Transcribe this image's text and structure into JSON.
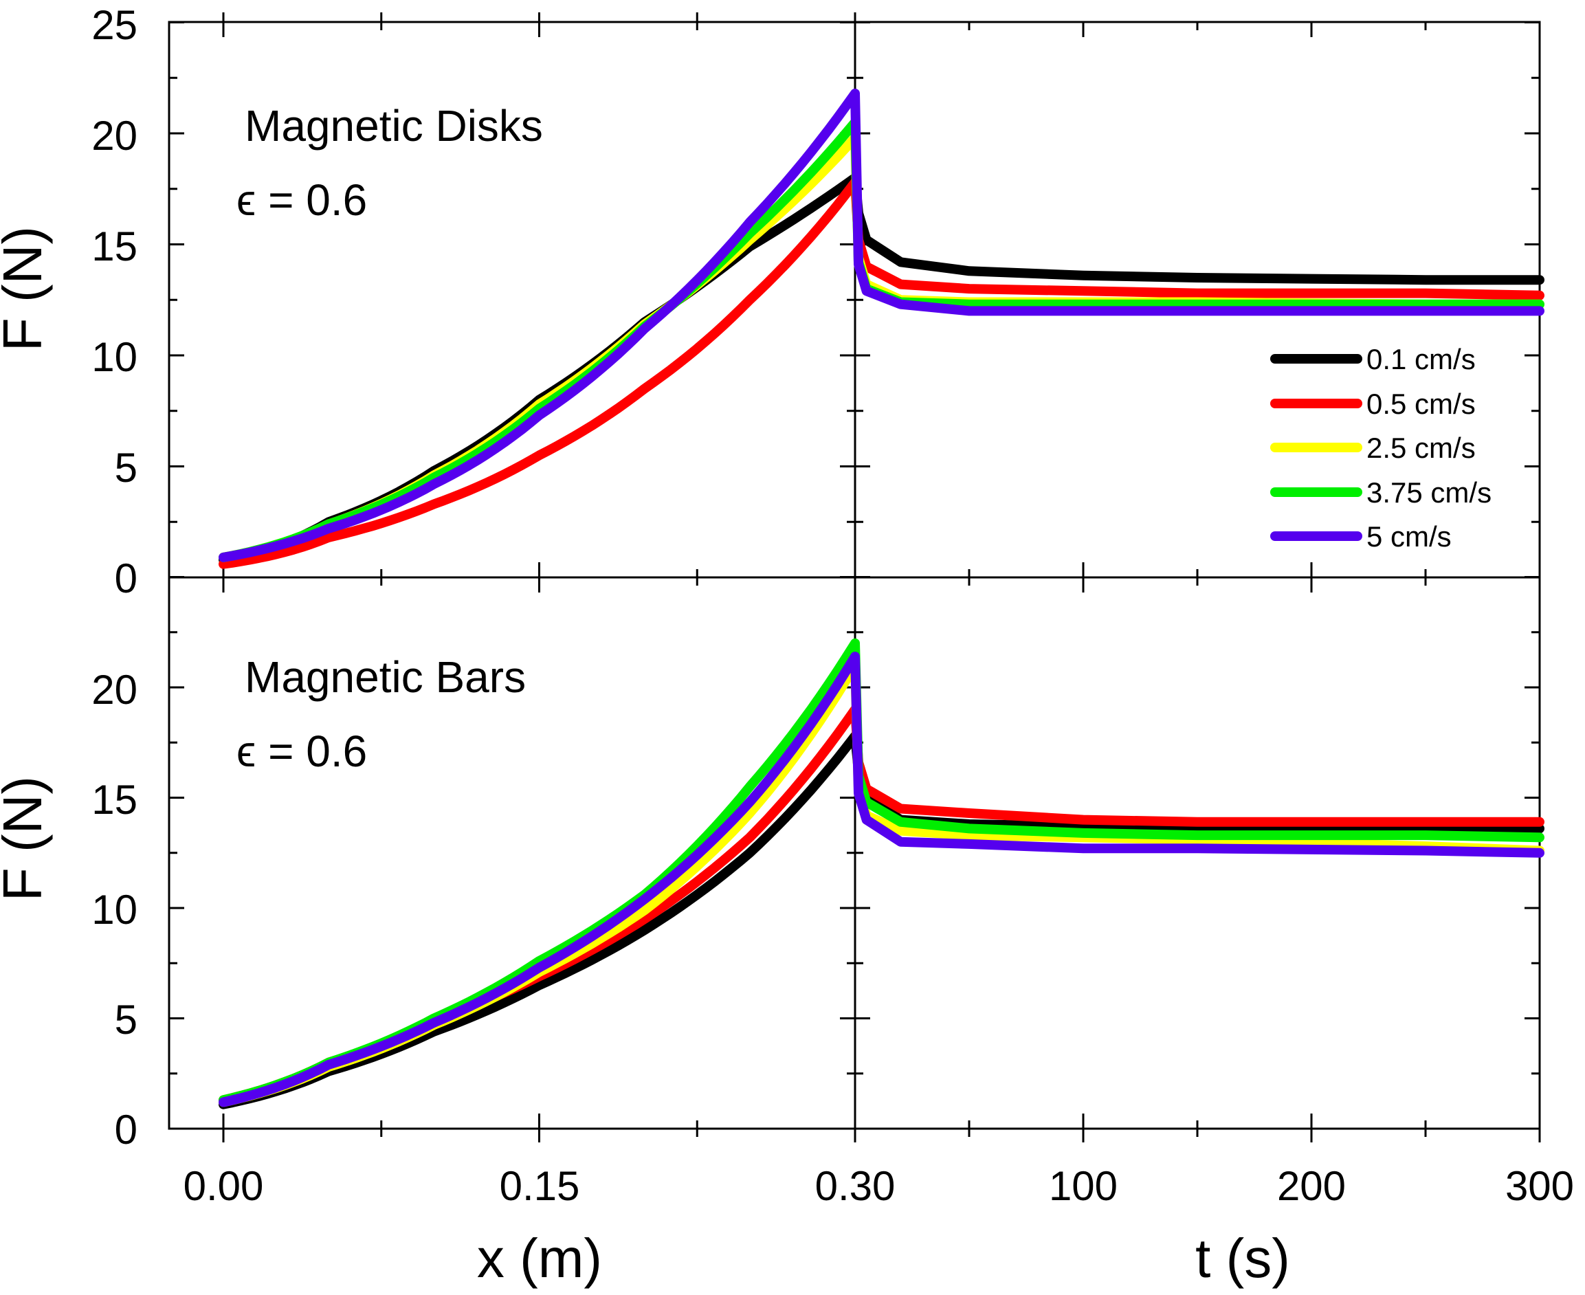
{
  "chart_data": {
    "type": "line",
    "y_axis": {
      "label": "F (N)",
      "range": [
        0,
        25
      ],
      "ticks": [
        "0",
        "5",
        "10",
        "15",
        "20",
        "25"
      ]
    },
    "x_axis_left": {
      "label": "x (m)",
      "range": [
        0,
        0.3
      ],
      "ticks": [
        "0.00",
        "0.15",
        "0.30"
      ]
    },
    "x_axis_right": {
      "label": "t (s)",
      "range": [
        0,
        300
      ],
      "ticks": [
        "100",
        "200",
        "300"
      ]
    },
    "legend": {
      "placement": "top-panel right",
      "entries": [
        {
          "label": "0.1 cm/s",
          "color": "#000000"
        },
        {
          "label": "0.5 cm/s",
          "color": "#ff0000"
        },
        {
          "label": "2.5 cm/s",
          "color": "#ffff00"
        },
        {
          "label": "3.75 cm/s",
          "color": "#00ee00"
        },
        {
          "label": "5 cm/s",
          "color": "#5500ee"
        }
      ]
    },
    "panels": [
      {
        "id": "top",
        "title": "Magnetic Disks",
        "param": "ϵ = 0.6",
        "series": [
          {
            "name": "0.1 cm/s",
            "color": "#000000",
            "peak": 18.0,
            "relax": [
              15.2,
              14.2,
              13.8,
              13.6,
              13.5,
              13.4,
              13.4
            ],
            "loading_x": [
              0.0,
              0.05,
              0.1,
              0.15,
              0.2,
              0.25,
              0.3
            ],
            "loading_F": [
              0.8,
              2.5,
              4.8,
              8.0,
              11.5,
              14.9,
              18.0
            ]
          },
          {
            "name": "0.5 cm/s",
            "color": "#ff0000",
            "peak": 17.8,
            "relax": [
              14.0,
              13.2,
              13.0,
              12.9,
              12.8,
              12.8,
              12.7
            ],
            "loading_x": [
              0.0,
              0.05,
              0.1,
              0.15,
              0.2,
              0.25,
              0.3
            ],
            "loading_F": [
              0.6,
              1.8,
              3.3,
              5.5,
              8.5,
              12.5,
              17.8
            ]
          },
          {
            "name": "2.5 cm/s",
            "color": "#ffff00",
            "peak": 19.8,
            "relax": [
              13.2,
              12.5,
              12.4,
              12.4,
              12.4,
              12.3,
              12.3
            ],
            "loading_x": [
              0.0,
              0.05,
              0.1,
              0.15,
              0.2,
              0.25,
              0.3
            ],
            "loading_F": [
              0.9,
              2.4,
              4.6,
              7.8,
              11.4,
              15.2,
              19.8
            ]
          },
          {
            "name": "3.75 cm/s",
            "color": "#00ee00",
            "peak": 20.5,
            "relax": [
              13.0,
              12.4,
              12.3,
              12.3,
              12.3,
              12.3,
              12.3
            ],
            "loading_x": [
              0.0,
              0.05,
              0.1,
              0.15,
              0.2,
              0.25,
              0.3
            ],
            "loading_F": [
              0.9,
              2.4,
              4.5,
              7.6,
              11.3,
              15.5,
              20.5
            ]
          },
          {
            "name": "5 cm/s",
            "color": "#5500ee",
            "peak": 21.8,
            "relax": [
              12.9,
              12.3,
              12.0,
              12.0,
              12.0,
              12.0,
              12.0
            ],
            "loading_x": [
              0.0,
              0.05,
              0.1,
              0.15,
              0.2,
              0.25,
              0.3
            ],
            "loading_F": [
              0.9,
              2.2,
              4.2,
              7.3,
              11.2,
              16.0,
              21.8
            ]
          }
        ]
      },
      {
        "id": "bottom",
        "title": "Magnetic Bars",
        "param": "ϵ = 0.6",
        "series": [
          {
            "name": "0.1 cm/s",
            "color": "#000000",
            "peak": 17.8,
            "relax": [
              15.0,
              14.0,
              13.8,
              13.7,
              13.6,
              13.6,
              13.6
            ],
            "loading_x": [
              0.0,
              0.05,
              0.1,
              0.15,
              0.2,
              0.25,
              0.3
            ],
            "loading_F": [
              1.1,
              2.6,
              4.4,
              6.5,
              9.0,
              12.5,
              17.8
            ]
          },
          {
            "name": "0.5 cm/s",
            "color": "#ff0000",
            "peak": 19.0,
            "relax": [
              15.4,
              14.5,
              14.3,
              14.0,
              13.9,
              13.9,
              13.9
            ],
            "loading_x": [
              0.0,
              0.05,
              0.1,
              0.15,
              0.2,
              0.25,
              0.3
            ],
            "loading_F": [
              1.3,
              3.0,
              4.9,
              6.9,
              9.5,
              13.2,
              19.0
            ]
          },
          {
            "name": "2.5 cm/s",
            "color": "#ffff00",
            "peak": 21.0,
            "relax": [
              14.2,
              13.5,
              13.3,
              13.2,
              13.1,
              12.8,
              12.6
            ],
            "loading_x": [
              0.0,
              0.05,
              0.1,
              0.15,
              0.2,
              0.25,
              0.3
            ],
            "loading_F": [
              1.2,
              2.8,
              4.7,
              7.1,
              9.9,
              14.3,
              21.0
            ]
          },
          {
            "name": "3.75 cm/s",
            "color": "#00ee00",
            "peak": 22.0,
            "relax": [
              14.8,
              13.9,
              13.6,
              13.4,
              13.3,
              13.3,
              13.2
            ],
            "loading_x": [
              0.0,
              0.05,
              0.1,
              0.15,
              0.2,
              0.25,
              0.3
            ],
            "loading_F": [
              1.3,
              3.0,
              5.0,
              7.6,
              10.6,
              15.5,
              22.0
            ]
          },
          {
            "name": "5 cm/s",
            "color": "#5500ee",
            "peak": 21.4,
            "relax": [
              14.0,
              13.0,
              12.9,
              12.7,
              12.7,
              12.6,
              12.5
            ],
            "loading_x": [
              0.0,
              0.05,
              0.1,
              0.15,
              0.2,
              0.25,
              0.3
            ],
            "loading_F": [
              1.2,
              2.9,
              4.8,
              7.3,
              10.4,
              14.8,
              21.4
            ]
          }
        ],
        "relax_t": [
          5,
          20,
          50,
          100,
          150,
          250,
          300
        ]
      }
    ],
    "relax_t": [
      5,
      20,
      50,
      100,
      150,
      250,
      300
    ]
  }
}
